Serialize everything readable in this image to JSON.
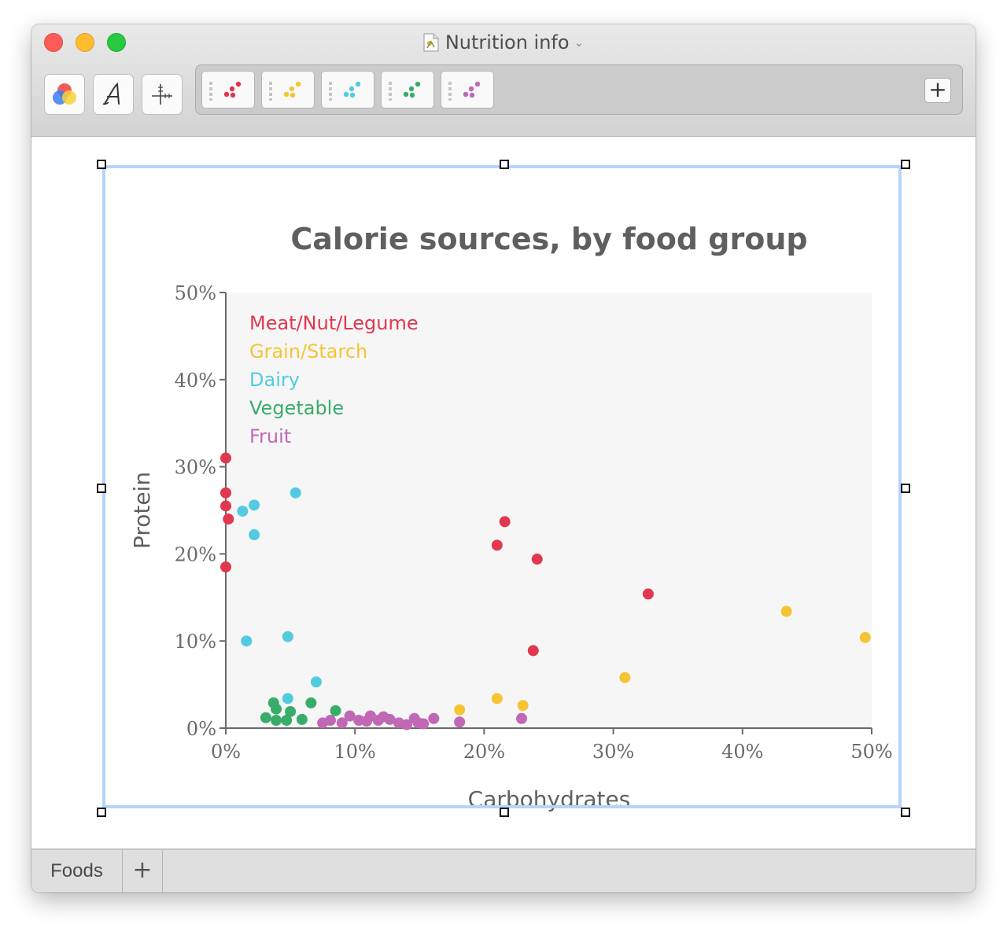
{
  "window": {
    "title": "Nutrition info",
    "title_icon": "document-icon"
  },
  "toolbar": {
    "buttons": [
      {
        "name": "color-wheel-button",
        "icon": "color-circles-icon"
      },
      {
        "name": "font-button",
        "icon": "calligraphic-a-icon"
      },
      {
        "name": "axes-button",
        "icon": "crosshair-axes-icon"
      }
    ],
    "series_buttons": [
      {
        "series": "Meat/Nut/Legume",
        "color": "#e0384f"
      },
      {
        "series": "Grain/Starch",
        "color": "#f6c432"
      },
      {
        "series": "Dairy",
        "color": "#52cbe0"
      },
      {
        "series": "Vegetable",
        "color": "#38ad6a"
      },
      {
        "series": "Fruit",
        "color": "#c068b6"
      }
    ],
    "add_series_label": "+"
  },
  "sheets": {
    "tabs": [
      {
        "label": "Foods"
      }
    ],
    "add_label": "+"
  },
  "chart_data": {
    "type": "scatter",
    "title": "Calorie sources, by food group",
    "xlabel": "Carbohydrates",
    "ylabel": "Protein",
    "xlim": [
      0,
      50
    ],
    "ylim": [
      0,
      50
    ],
    "x_ticks": [
      "0%",
      "10%",
      "20%",
      "30%",
      "40%",
      "50%"
    ],
    "y_ticks": [
      "0%",
      "10%",
      "20%",
      "30%",
      "40%",
      "50%"
    ],
    "legend_position": "top-left",
    "grid": false,
    "series": [
      {
        "name": "Meat/Nut/Legume",
        "color": "#e0384f",
        "points": [
          [
            0.0,
            31.0
          ],
          [
            0.0,
            27.0
          ],
          [
            0.0,
            25.5
          ],
          [
            0.2,
            24.0
          ],
          [
            0.0,
            18.5
          ],
          [
            21.6,
            23.7
          ],
          [
            21.0,
            21.0
          ],
          [
            24.1,
            19.4
          ],
          [
            32.7,
            15.4
          ],
          [
            23.8,
            8.9
          ]
        ]
      },
      {
        "name": "Grain/Starch",
        "color": "#f6c432",
        "points": [
          [
            43.4,
            13.4
          ],
          [
            49.5,
            10.4
          ],
          [
            30.9,
            5.8
          ],
          [
            18.1,
            2.1
          ],
          [
            21.0,
            3.4
          ],
          [
            23.0,
            2.6
          ]
        ]
      },
      {
        "name": "Dairy",
        "color": "#52cbe0",
        "points": [
          [
            1.3,
            24.9
          ],
          [
            2.2,
            25.6
          ],
          [
            5.4,
            27.0
          ],
          [
            2.2,
            22.2
          ],
          [
            1.6,
            10.0
          ],
          [
            4.8,
            10.5
          ],
          [
            7.0,
            5.3
          ],
          [
            4.8,
            3.4
          ]
        ]
      },
      {
        "name": "Vegetable",
        "color": "#38ad6a",
        "points": [
          [
            3.1,
            1.2
          ],
          [
            3.7,
            2.9
          ],
          [
            3.9,
            2.2
          ],
          [
            3.9,
            0.9
          ],
          [
            4.7,
            0.9
          ],
          [
            5.0,
            1.9
          ],
          [
            5.9,
            1.0
          ],
          [
            6.6,
            2.9
          ],
          [
            8.5,
            2.0
          ]
        ]
      },
      {
        "name": "Fruit",
        "color": "#c068b6",
        "points": [
          [
            7.5,
            0.6
          ],
          [
            8.1,
            0.9
          ],
          [
            9.0,
            0.6
          ],
          [
            9.6,
            1.4
          ],
          [
            10.3,
            0.9
          ],
          [
            10.9,
            0.8
          ],
          [
            11.2,
            1.4
          ],
          [
            11.8,
            0.9
          ],
          [
            12.2,
            1.3
          ],
          [
            12.7,
            1.0
          ],
          [
            13.4,
            0.6
          ],
          [
            14.0,
            0.4
          ],
          [
            14.6,
            1.1
          ],
          [
            14.9,
            0.6
          ],
          [
            15.3,
            0.5
          ],
          [
            16.1,
            1.1
          ],
          [
            18.1,
            0.7
          ],
          [
            22.9,
            1.1
          ]
        ]
      }
    ]
  }
}
